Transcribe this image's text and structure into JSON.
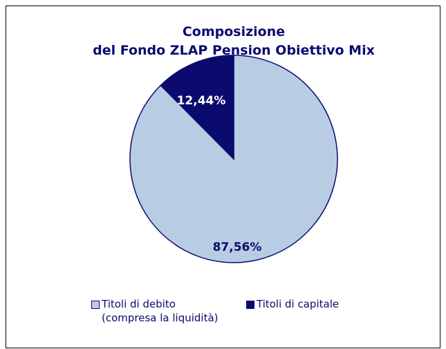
{
  "chart_data": {
    "type": "pie",
    "title": [
      "Composizione",
      "del Fondo ZLAP Pension Obiettivo Mix"
    ],
    "series": [
      {
        "name": "Titoli di debito (compresa la liquidità)",
        "color": "#b8cce4",
        "values": [
          87.56
        ],
        "value_labels": [
          "87,56%"
        ]
      },
      {
        "name": "Titoli di capitale",
        "color": "#0b0b6f",
        "values": [
          12.44
        ],
        "value_labels": [
          "12,44%"
        ]
      }
    ]
  }
}
